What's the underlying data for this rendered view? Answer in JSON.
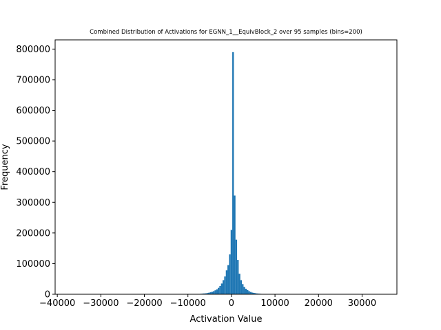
{
  "chart_data": {
    "type": "bar",
    "title": "Combined Distribution of Activations for EGNN_1__EquivBlock_2 over 95 samples  (bins=200)",
    "xlabel": "Activation Value",
    "ylabel": "Frequency",
    "xlim": [
      -40500,
      38000
    ],
    "ylim": [
      0,
      830000
    ],
    "xticks": [
      -40000,
      -30000,
      -20000,
      -10000,
      0,
      10000,
      20000,
      30000
    ],
    "yticks": [
      0,
      100000,
      200000,
      300000,
      400000,
      500000,
      600000,
      700000,
      800000
    ],
    "bin_width": 370,
    "bars": [
      {
        "x": -7400,
        "y": 1000
      },
      {
        "x": -7030,
        "y": 1500
      },
      {
        "x": -6660,
        "y": 2000
      },
      {
        "x": -6290,
        "y": 2500
      },
      {
        "x": -5920,
        "y": 3000
      },
      {
        "x": -5550,
        "y": 4000
      },
      {
        "x": -5180,
        "y": 5000
      },
      {
        "x": -4810,
        "y": 6500
      },
      {
        "x": -4440,
        "y": 8000
      },
      {
        "x": -4070,
        "y": 10000
      },
      {
        "x": -3700,
        "y": 13000
      },
      {
        "x": -3330,
        "y": 16000
      },
      {
        "x": -2960,
        "y": 21000
      },
      {
        "x": -2590,
        "y": 27000
      },
      {
        "x": -2220,
        "y": 35000
      },
      {
        "x": -1850,
        "y": 46000
      },
      {
        "x": -1480,
        "y": 58000
      },
      {
        "x": -1110,
        "y": 78000
      },
      {
        "x": -740,
        "y": 95000
      },
      {
        "x": -370,
        "y": 130000
      },
      {
        "x": 0,
        "y": 210000
      },
      {
        "x": 370,
        "y": 790000
      },
      {
        "x": 740,
        "y": 322000
      },
      {
        "x": 1110,
        "y": 178000
      },
      {
        "x": 1480,
        "y": 112000
      },
      {
        "x": 1850,
        "y": 67000
      },
      {
        "x": 2220,
        "y": 46000
      },
      {
        "x": 2590,
        "y": 33000
      },
      {
        "x": 2960,
        "y": 24000
      },
      {
        "x": 3330,
        "y": 18000
      },
      {
        "x": 3700,
        "y": 13500
      },
      {
        "x": 4070,
        "y": 10000
      },
      {
        "x": 4440,
        "y": 7500
      },
      {
        "x": 4810,
        "y": 5500
      },
      {
        "x": 5180,
        "y": 4500
      },
      {
        "x": 5550,
        "y": 3500
      },
      {
        "x": 5920,
        "y": 2500
      },
      {
        "x": 6290,
        "y": 2000
      },
      {
        "x": 6660,
        "y": 1500
      },
      {
        "x": 7030,
        "y": 1000
      }
    ],
    "grid": false,
    "bar_color": "#1f77b4"
  }
}
